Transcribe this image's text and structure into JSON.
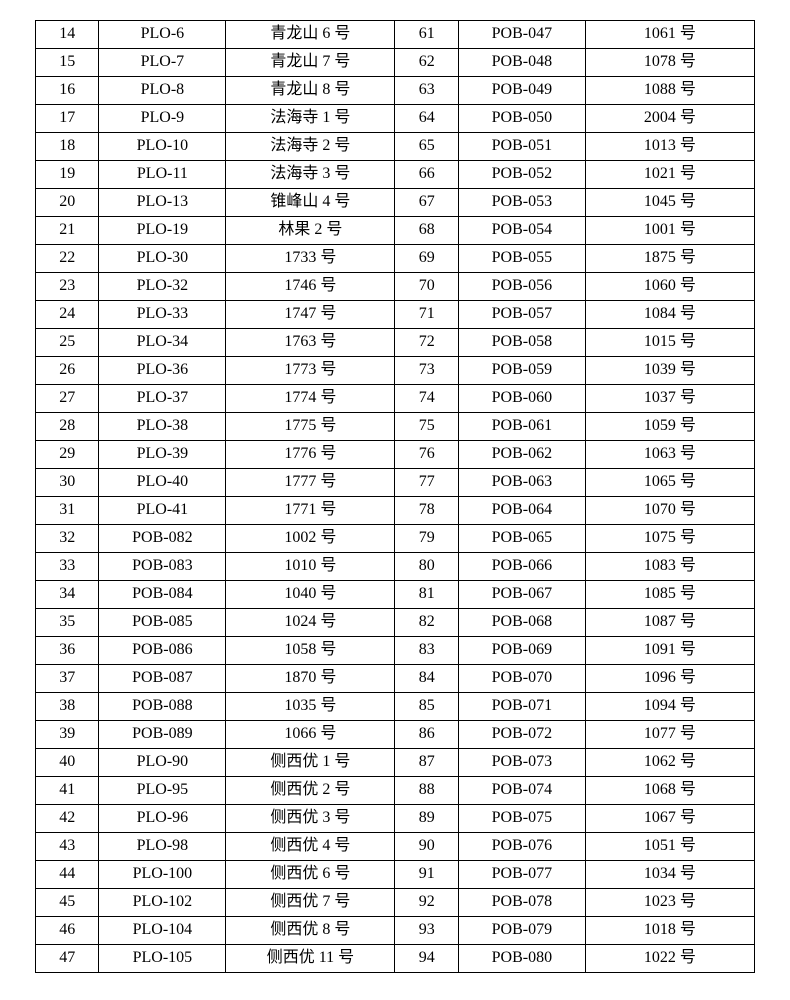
{
  "table": {
    "columns": [
      {
        "key": "idx1",
        "width": "7.5%"
      },
      {
        "key": "code1",
        "width": "15%"
      },
      {
        "key": "name1",
        "width": "20%"
      },
      {
        "key": "idx2",
        "width": "7.5%"
      },
      {
        "key": "code2",
        "width": "15%"
      },
      {
        "key": "name2",
        "width": "20%"
      }
    ],
    "rows": [
      {
        "idx1": "14",
        "code1": "PLO-6",
        "name1": "青龙山 6 号",
        "idx2": "61",
        "code2": "POB-047",
        "name2": "1061 号"
      },
      {
        "idx1": "15",
        "code1": "PLO-7",
        "name1": "青龙山 7 号",
        "idx2": "62",
        "code2": "POB-048",
        "name2": "1078 号"
      },
      {
        "idx1": "16",
        "code1": "PLO-8",
        "name1": "青龙山 8 号",
        "idx2": "63",
        "code2": "POB-049",
        "name2": "1088 号"
      },
      {
        "idx1": "17",
        "code1": "PLO-9",
        "name1": "法海寺 1 号",
        "idx2": "64",
        "code2": "POB-050",
        "name2": "2004 号"
      },
      {
        "idx1": "18",
        "code1": "PLO-10",
        "name1": "法海寺 2 号",
        "idx2": "65",
        "code2": "POB-051",
        "name2": "1013 号"
      },
      {
        "idx1": "19",
        "code1": "PLO-11",
        "name1": "法海寺 3 号",
        "idx2": "66",
        "code2": "POB-052",
        "name2": "1021 号"
      },
      {
        "idx1": "20",
        "code1": "PLO-13",
        "name1": "锥峰山 4 号",
        "idx2": "67",
        "code2": "POB-053",
        "name2": "1045 号"
      },
      {
        "idx1": "21",
        "code1": "PLO-19",
        "name1": "林果 2 号",
        "idx2": "68",
        "code2": "POB-054",
        "name2": "1001 号"
      },
      {
        "idx1": "22",
        "code1": "PLO-30",
        "name1": "1733 号",
        "idx2": "69",
        "code2": "POB-055",
        "name2": "1875 号"
      },
      {
        "idx1": "23",
        "code1": "PLO-32",
        "name1": "1746 号",
        "idx2": "70",
        "code2": "POB-056",
        "name2": "1060 号"
      },
      {
        "idx1": "24",
        "code1": "PLO-33",
        "name1": "1747 号",
        "idx2": "71",
        "code2": "POB-057",
        "name2": "1084 号"
      },
      {
        "idx1": "25",
        "code1": "PLO-34",
        "name1": "1763 号",
        "idx2": "72",
        "code2": "POB-058",
        "name2": "1015 号"
      },
      {
        "idx1": "26",
        "code1": "PLO-36",
        "name1": "1773 号",
        "idx2": "73",
        "code2": "POB-059",
        "name2": "1039 号"
      },
      {
        "idx1": "27",
        "code1": "PLO-37",
        "name1": "1774 号",
        "idx2": "74",
        "code2": "POB-060",
        "name2": "1037 号"
      },
      {
        "idx1": "28",
        "code1": "PLO-38",
        "name1": "1775 号",
        "idx2": "75",
        "code2": "POB-061",
        "name2": "1059 号"
      },
      {
        "idx1": "29",
        "code1": "PLO-39",
        "name1": "1776 号",
        "idx2": "76",
        "code2": "POB-062",
        "name2": "1063 号"
      },
      {
        "idx1": "30",
        "code1": "PLO-40",
        "name1": "1777 号",
        "idx2": "77",
        "code2": "POB-063",
        "name2": "1065 号"
      },
      {
        "idx1": "31",
        "code1": "PLO-41",
        "name1": "1771 号",
        "idx2": "78",
        "code2": "POB-064",
        "name2": "1070 号"
      },
      {
        "idx1": "32",
        "code1": "POB-082",
        "name1": "1002 号",
        "idx2": "79",
        "code2": "POB-065",
        "name2": "1075 号"
      },
      {
        "idx1": "33",
        "code1": "POB-083",
        "name1": "1010 号",
        "idx2": "80",
        "code2": "POB-066",
        "name2": "1083 号"
      },
      {
        "idx1": "34",
        "code1": "POB-084",
        "name1": "1040 号",
        "idx2": "81",
        "code2": "POB-067",
        "name2": "1085 号"
      },
      {
        "idx1": "35",
        "code1": "POB-085",
        "name1": "1024 号",
        "idx2": "82",
        "code2": "POB-068",
        "name2": "1087 号"
      },
      {
        "idx1": "36",
        "code1": "POB-086",
        "name1": "1058 号",
        "idx2": "83",
        "code2": "POB-069",
        "name2": "1091 号"
      },
      {
        "idx1": "37",
        "code1": "POB-087",
        "name1": "1870 号",
        "idx2": "84",
        "code2": "POB-070",
        "name2": "1096 号"
      },
      {
        "idx1": "38",
        "code1": "POB-088",
        "name1": "1035 号",
        "idx2": "85",
        "code2": "POB-071",
        "name2": "1094 号"
      },
      {
        "idx1": "39",
        "code1": "POB-089",
        "name1": "1066 号",
        "idx2": "86",
        "code2": "POB-072",
        "name2": "1077 号"
      },
      {
        "idx1": "40",
        "code1": "PLO-90",
        "name1": "侧西优 1 号",
        "idx2": "87",
        "code2": "POB-073",
        "name2": "1062 号"
      },
      {
        "idx1": "41",
        "code1": "PLO-95",
        "name1": "侧西优 2 号",
        "idx2": "88",
        "code2": "POB-074",
        "name2": "1068 号"
      },
      {
        "idx1": "42",
        "code1": "PLO-96",
        "name1": "侧西优 3 号",
        "idx2": "89",
        "code2": "POB-075",
        "name2": "1067 号"
      },
      {
        "idx1": "43",
        "code1": "PLO-98",
        "name1": "侧西优 4 号",
        "idx2": "90",
        "code2": "POB-076",
        "name2": "1051 号"
      },
      {
        "idx1": "44",
        "code1": "PLO-100",
        "name1": "侧西优 6 号",
        "idx2": "91",
        "code2": "POB-077",
        "name2": "1034 号"
      },
      {
        "idx1": "45",
        "code1": "PLO-102",
        "name1": "侧西优 7 号",
        "idx2": "92",
        "code2": "POB-078",
        "name2": "1023 号"
      },
      {
        "idx1": "46",
        "code1": "PLO-104",
        "name1": "侧西优 8 号",
        "idx2": "93",
        "code2": "POB-079",
        "name2": "1018 号"
      },
      {
        "idx1": "47",
        "code1": "PLO-105",
        "name1": "侧西优 11 号",
        "idx2": "94",
        "code2": "POB-080",
        "name2": "1022 号"
      }
    ]
  }
}
